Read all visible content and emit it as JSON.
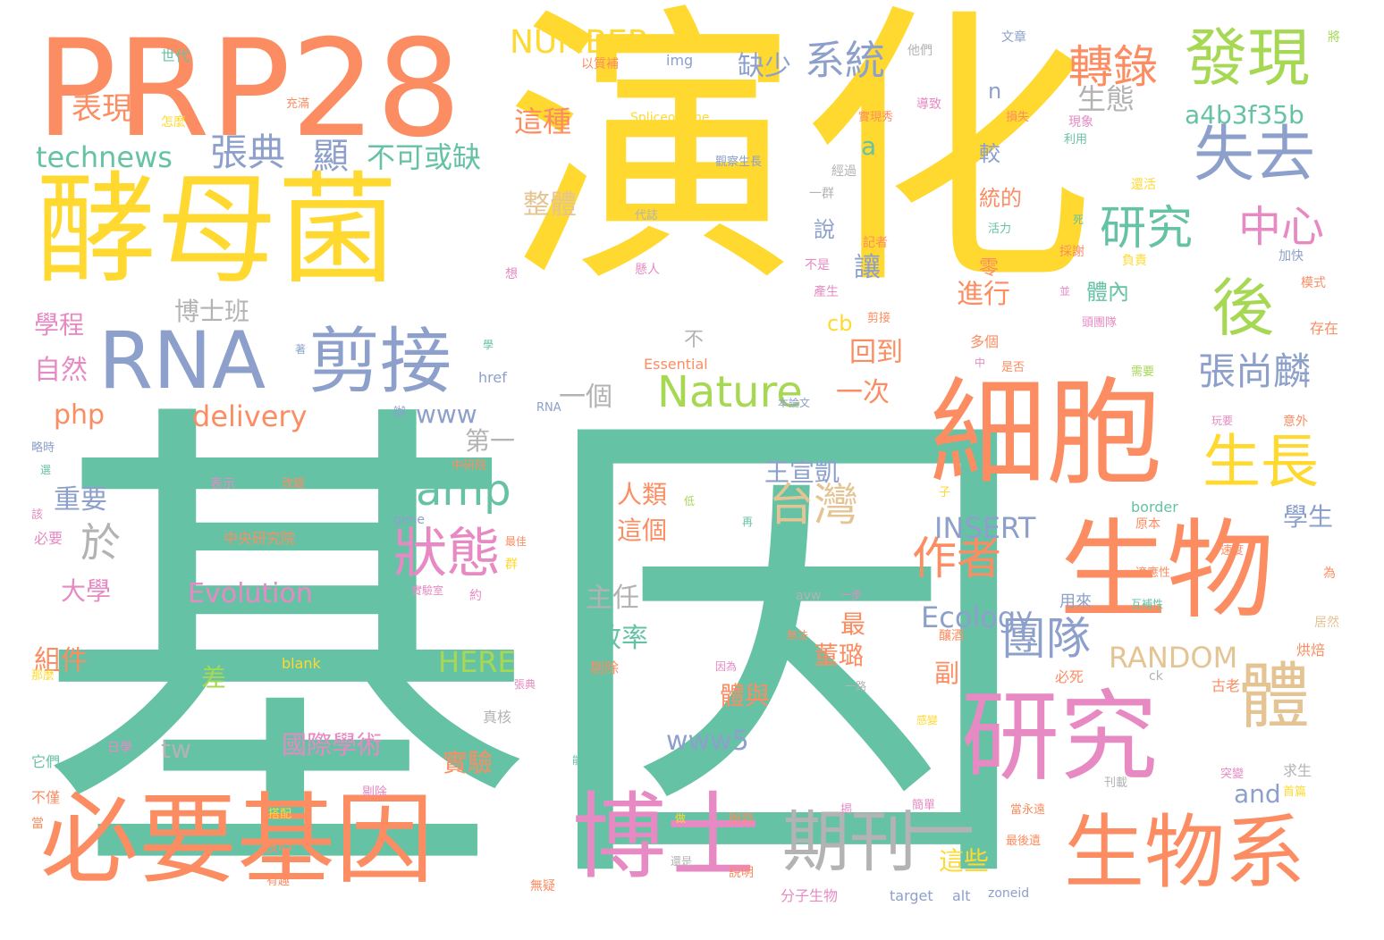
{
  "palette": {
    "teal": "#66c2a5",
    "yellow": "#ffd92f",
    "orange": "#fc8d62",
    "blue": "#8da0cb",
    "pink": "#e78ac3",
    "green": "#a6d854",
    "tan": "#e5c494",
    "gray": "#b3b3b3",
    "background": "#ffffff"
  },
  "words": [
    {
      "text": "基因",
      "color": "teal"
    },
    {
      "text": "演化",
      "color": "yellow"
    },
    {
      "text": "PRP28",
      "color": "orange"
    },
    {
      "text": "酵母菌",
      "color": "yellow"
    },
    {
      "text": "細胞",
      "color": "orange"
    },
    {
      "text": "生物",
      "color": "orange"
    },
    {
      "text": "研究",
      "color": "pink"
    },
    {
      "text": "必要基因",
      "color": "orange"
    },
    {
      "text": "博士",
      "color": "pink"
    },
    {
      "text": "生物系",
      "color": "orange"
    },
    {
      "text": "RNA",
      "color": "blue"
    },
    {
      "text": "剪接",
      "color": "blue"
    },
    {
      "text": "發現",
      "color": "green"
    },
    {
      "text": "後",
      "color": "green"
    },
    {
      "text": "失去",
      "color": "blue"
    },
    {
      "text": "體",
      "color": "tan"
    },
    {
      "text": "生長",
      "color": "yellow"
    },
    {
      "text": "期刊",
      "color": "gray"
    },
    {
      "text": "一",
      "color": "gray"
    },
    {
      "text": "Nature",
      "color": "green"
    },
    {
      "text": "amp",
      "color": "teal"
    },
    {
      "text": "狀態",
      "color": "pink"
    },
    {
      "text": "台灣",
      "color": "tan"
    },
    {
      "text": "研究",
      "color": "teal"
    },
    {
      "text": "中心",
      "color": "pink"
    },
    {
      "text": "系統",
      "color": "blue"
    },
    {
      "text": "轉錄",
      "color": "orange"
    },
    {
      "text": "張尚麟",
      "color": "blue"
    },
    {
      "text": "團隊",
      "color": "blue"
    },
    {
      "text": "作者",
      "color": "orange"
    },
    {
      "text": "NUMBER",
      "color": "yellow"
    },
    {
      "text": "technews",
      "color": "teal"
    },
    {
      "text": "張典",
      "color": "blue"
    },
    {
      "text": "顯",
      "color": "blue"
    },
    {
      "text": "不可或缺",
      "color": "teal"
    },
    {
      "text": "表現",
      "color": "orange"
    },
    {
      "text": "缺少",
      "color": "blue"
    },
    {
      "text": "生態",
      "color": "gray"
    },
    {
      "text": "a4b3f35b",
      "color": "teal"
    },
    {
      "text": "這種",
      "color": "orange"
    },
    {
      "text": "整體",
      "color": "tan"
    },
    {
      "text": "於",
      "color": "gray"
    },
    {
      "text": "RANDOM",
      "color": "tan"
    },
    {
      "text": "INSERT",
      "color": "blue"
    },
    {
      "text": "Ecology",
      "color": "blue"
    },
    {
      "text": "Evolution",
      "color": "pink"
    },
    {
      "text": "HERE",
      "color": "green"
    },
    {
      "text": "delivery",
      "color": "orange"
    },
    {
      "text": "www",
      "color": "blue"
    },
    {
      "text": "www5",
      "color": "blue"
    },
    {
      "text": "php",
      "color": "orange"
    },
    {
      "text": "讓",
      "color": "blue"
    },
    {
      "text": "進行",
      "color": "orange"
    },
    {
      "text": "回到",
      "color": "orange"
    },
    {
      "text": "一次",
      "color": "orange"
    },
    {
      "text": "一個",
      "color": "gray"
    },
    {
      "text": "博士班",
      "color": "gray"
    },
    {
      "text": "學程",
      "color": "pink"
    },
    {
      "text": "自然",
      "color": "pink"
    },
    {
      "text": "重要",
      "color": "blue"
    },
    {
      "text": "大學",
      "color": "pink"
    },
    {
      "text": "組件",
      "color": "orange"
    },
    {
      "text": "主任",
      "color": "gray"
    },
    {
      "text": "效率",
      "color": "teal"
    },
    {
      "text": "人類",
      "color": "orange"
    },
    {
      "text": "這個",
      "color": "orange"
    },
    {
      "text": "王宣凱",
      "color": "blue"
    },
    {
      "text": "國際學術",
      "color": "pink"
    },
    {
      "text": "實驗",
      "color": "orange"
    },
    {
      "text": "tw",
      "color": "gray"
    },
    {
      "text": "差",
      "color": "green"
    },
    {
      "text": "最",
      "color": "orange"
    },
    {
      "text": "董璐",
      "color": "orange"
    },
    {
      "text": "體與",
      "color": "orange"
    },
    {
      "text": "副",
      "color": "orange"
    },
    {
      "text": "這些",
      "color": "yellow"
    },
    {
      "text": "and",
      "color": "blue"
    },
    {
      "text": "學生",
      "color": "blue"
    },
    {
      "text": "第一",
      "color": "gray"
    },
    {
      "text": "不",
      "color": "gray"
    },
    {
      "text": "cb",
      "color": "yellow"
    },
    {
      "text": "體內",
      "color": "teal"
    },
    {
      "text": "零",
      "color": "orange"
    },
    {
      "text": "說",
      "color": "blue"
    },
    {
      "text": "統的",
      "color": "orange"
    },
    {
      "text": "較",
      "color": "blue"
    },
    {
      "text": "n",
      "color": "blue"
    },
    {
      "text": "a",
      "color": "teal"
    },
    {
      "text": "會",
      "color": "yellow"
    },
    {
      "text": "img",
      "color": "blue"
    },
    {
      "text": "世代",
      "color": "teal"
    },
    {
      "text": "怎麼",
      "color": "yellow"
    },
    {
      "text": "以質補",
      "color": "orange"
    },
    {
      "text": "他們",
      "color": "gray"
    },
    {
      "text": "導致",
      "color": "pink"
    },
    {
      "text": "充滿",
      "color": "orange"
    },
    {
      "text": "文章",
      "color": "blue"
    },
    {
      "text": "將",
      "color": "green"
    },
    {
      "text": "Spliceosome",
      "color": "yellow"
    },
    {
      "text": "損失",
      "color": "orange"
    },
    {
      "text": "現象",
      "color": "pink"
    },
    {
      "text": "利用",
      "color": "teal"
    },
    {
      "text": "實現秀",
      "color": "orange"
    },
    {
      "text": "觀察生長",
      "color": "blue"
    },
    {
      "text": "經過",
      "color": "gray"
    },
    {
      "text": "一群",
      "color": "gray"
    },
    {
      "text": "還活",
      "color": "yellow"
    },
    {
      "text": "代誌",
      "color": "gray"
    },
    {
      "text": "死",
      "color": "teal"
    },
    {
      "text": "活力",
      "color": "teal"
    },
    {
      "text": "記者",
      "color": "orange"
    },
    {
      "text": "不是",
      "color": "pink"
    },
    {
      "text": "採謝",
      "color": "orange"
    },
    {
      "text": "負責",
      "color": "yellow"
    },
    {
      "text": "加快",
      "color": "blue"
    },
    {
      "text": "想",
      "color": "pink"
    },
    {
      "text": "懸人",
      "color": "pink"
    },
    {
      "text": "產生",
      "color": "pink"
    },
    {
      "text": "並",
      "color": "pink"
    },
    {
      "text": "模式",
      "color": "orange"
    },
    {
      "text": "剪接",
      "color": "orange"
    },
    {
      "text": "頭團隊",
      "color": "pink"
    },
    {
      "text": "存在",
      "color": "orange"
    },
    {
      "text": "多個",
      "color": "orange"
    },
    {
      "text": "著",
      "color": "blue"
    },
    {
      "text": "學",
      "color": "teal"
    },
    {
      "text": "Essential",
      "color": "orange"
    },
    {
      "text": "中",
      "color": "pink"
    },
    {
      "text": "是否",
      "color": "orange"
    },
    {
      "text": "需要",
      "color": "green"
    },
    {
      "text": "href",
      "color": "blue"
    },
    {
      "text": "RNA",
      "color": "blue"
    },
    {
      "text": "本論文",
      "color": "blue"
    },
    {
      "text": "辦",
      "color": "blue"
    },
    {
      "text": "玩要",
      "color": "pink"
    },
    {
      "text": "意外",
      "color": "orange"
    },
    {
      "text": "略時",
      "color": "blue"
    },
    {
      "text": "選",
      "color": "teal"
    },
    {
      "text": "中研院",
      "color": "orange"
    },
    {
      "text": "src",
      "color": "teal"
    },
    {
      "text": "表示",
      "color": "pink"
    },
    {
      "text": "改變",
      "color": "orange"
    },
    {
      "text": "低",
      "color": "green"
    },
    {
      "text": "子",
      "color": "yellow"
    },
    {
      "text": "border",
      "color": "teal"
    },
    {
      "text": "原本",
      "color": "orange"
    },
    {
      "text": "該",
      "color": "pink"
    },
    {
      "text": "gene",
      "color": "blue"
    },
    {
      "text": "再",
      "color": "teal"
    },
    {
      "text": "中央研究院",
      "color": "orange"
    },
    {
      "text": "必要",
      "color": "pink"
    },
    {
      "text": "最佳",
      "color": "orange"
    },
    {
      "text": "速度",
      "color": "orange"
    },
    {
      "text": "為",
      "color": "orange"
    },
    {
      "text": "群",
      "color": "yellow"
    },
    {
      "text": "實驗室",
      "color": "pink"
    },
    {
      "text": "適應性",
      "color": "orange"
    },
    {
      "text": "約",
      "color": "pink"
    },
    {
      "text": "avw",
      "color": "gray"
    },
    {
      "text": "一步",
      "color": "pink"
    },
    {
      "text": "互補性",
      "color": "teal"
    },
    {
      "text": "用來",
      "color": "blue"
    },
    {
      "text": "居然",
      "color": "tan"
    },
    {
      "text": "無法",
      "color": "orange"
    },
    {
      "text": "釀酒",
      "color": "orange"
    },
    {
      "text": "烘焙",
      "color": "orange"
    },
    {
      "text": "blank",
      "color": "yellow"
    },
    {
      "text": "因為",
      "color": "pink"
    },
    {
      "text": "那麼",
      "color": "yellow"
    },
    {
      "text": "剔除",
      "color": "orange"
    },
    {
      "text": "一路",
      "color": "gray"
    },
    {
      "text": "必死",
      "color": "orange"
    },
    {
      "text": "ck",
      "color": "gray"
    },
    {
      "text": "古老",
      "color": "orange"
    },
    {
      "text": "張典",
      "color": "pink"
    },
    {
      "text": "真核",
      "color": "gray"
    },
    {
      "text": "感變",
      "color": "yellow"
    },
    {
      "text": "日學",
      "color": "pink"
    },
    {
      "text": "能否",
      "color": "teal"
    },
    {
      "text": "它們",
      "color": "teal"
    },
    {
      "text": "剔除",
      "color": "pink"
    },
    {
      "text": "刊載",
      "color": "gray"
    },
    {
      "text": "突變",
      "color": "pink"
    },
    {
      "text": "求生",
      "color": "gray"
    },
    {
      "text": "首篇",
      "color": "yellow"
    },
    {
      "text": "不僅",
      "color": "orange"
    },
    {
      "text": "簡單",
      "color": "pink"
    },
    {
      "text": "當",
      "color": "orange"
    },
    {
      "text": "搭配",
      "color": "yellow"
    },
    {
      "text": "做",
      "color": "yellow"
    },
    {
      "text": "辦到",
      "color": "orange"
    },
    {
      "text": "揭",
      "color": "pink"
    },
    {
      "text": "當永遠",
      "color": "orange"
    },
    {
      "text": "核心",
      "color": "orange"
    },
    {
      "text": "還是",
      "color": "gray"
    },
    {
      "text": "最後遺",
      "color": "orange"
    },
    {
      "text": "說明",
      "color": "orange"
    },
    {
      "text": "有趣",
      "color": "orange"
    },
    {
      "text": "無疑",
      "color": "orange"
    },
    {
      "text": "分子生物",
      "color": "pink"
    },
    {
      "text": "target",
      "color": "blue"
    },
    {
      "text": "alt",
      "color": "blue"
    },
    {
      "text": "zoneid",
      "color": "blue"
    }
  ]
}
